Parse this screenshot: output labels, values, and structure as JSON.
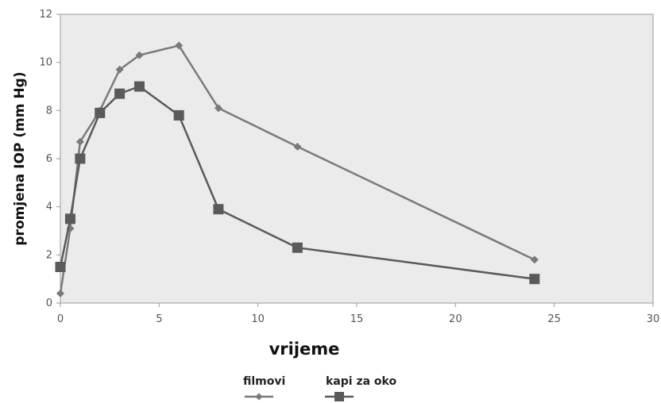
{
  "chart_data": {
    "type": "line",
    "title": "",
    "xlabel": "vrijeme",
    "ylabel": "promjena IOP (mm Hg)",
    "xlim": [
      0,
      30
    ],
    "ylim": [
      0,
      12
    ],
    "x_ticks": [
      "0",
      "5",
      "10",
      "15",
      "20",
      "25",
      "30"
    ],
    "y_ticks": [
      "0",
      "2",
      "4",
      "6",
      "8",
      "10",
      "12"
    ],
    "grid": false,
    "legend_position": "bottom",
    "series": [
      {
        "name": "filmovi",
        "marker": "diamond",
        "color": "#7a7a7a",
        "x": [
          0,
          0.5,
          1,
          2,
          3,
          4,
          6,
          8,
          12,
          24
        ],
        "y": [
          0.4,
          3.1,
          6.7,
          8.0,
          9.7,
          10.3,
          10.7,
          8.1,
          6.5,
          1.8
        ]
      },
      {
        "name": "kapi za oko",
        "marker": "square",
        "color": "#5a5a5a",
        "x": [
          0,
          0.5,
          1,
          2,
          3,
          4,
          6,
          8,
          12,
          24
        ],
        "y": [
          1.5,
          3.5,
          6.0,
          7.9,
          8.7,
          9.0,
          7.8,
          3.9,
          2.3,
          1.0
        ]
      }
    ]
  }
}
